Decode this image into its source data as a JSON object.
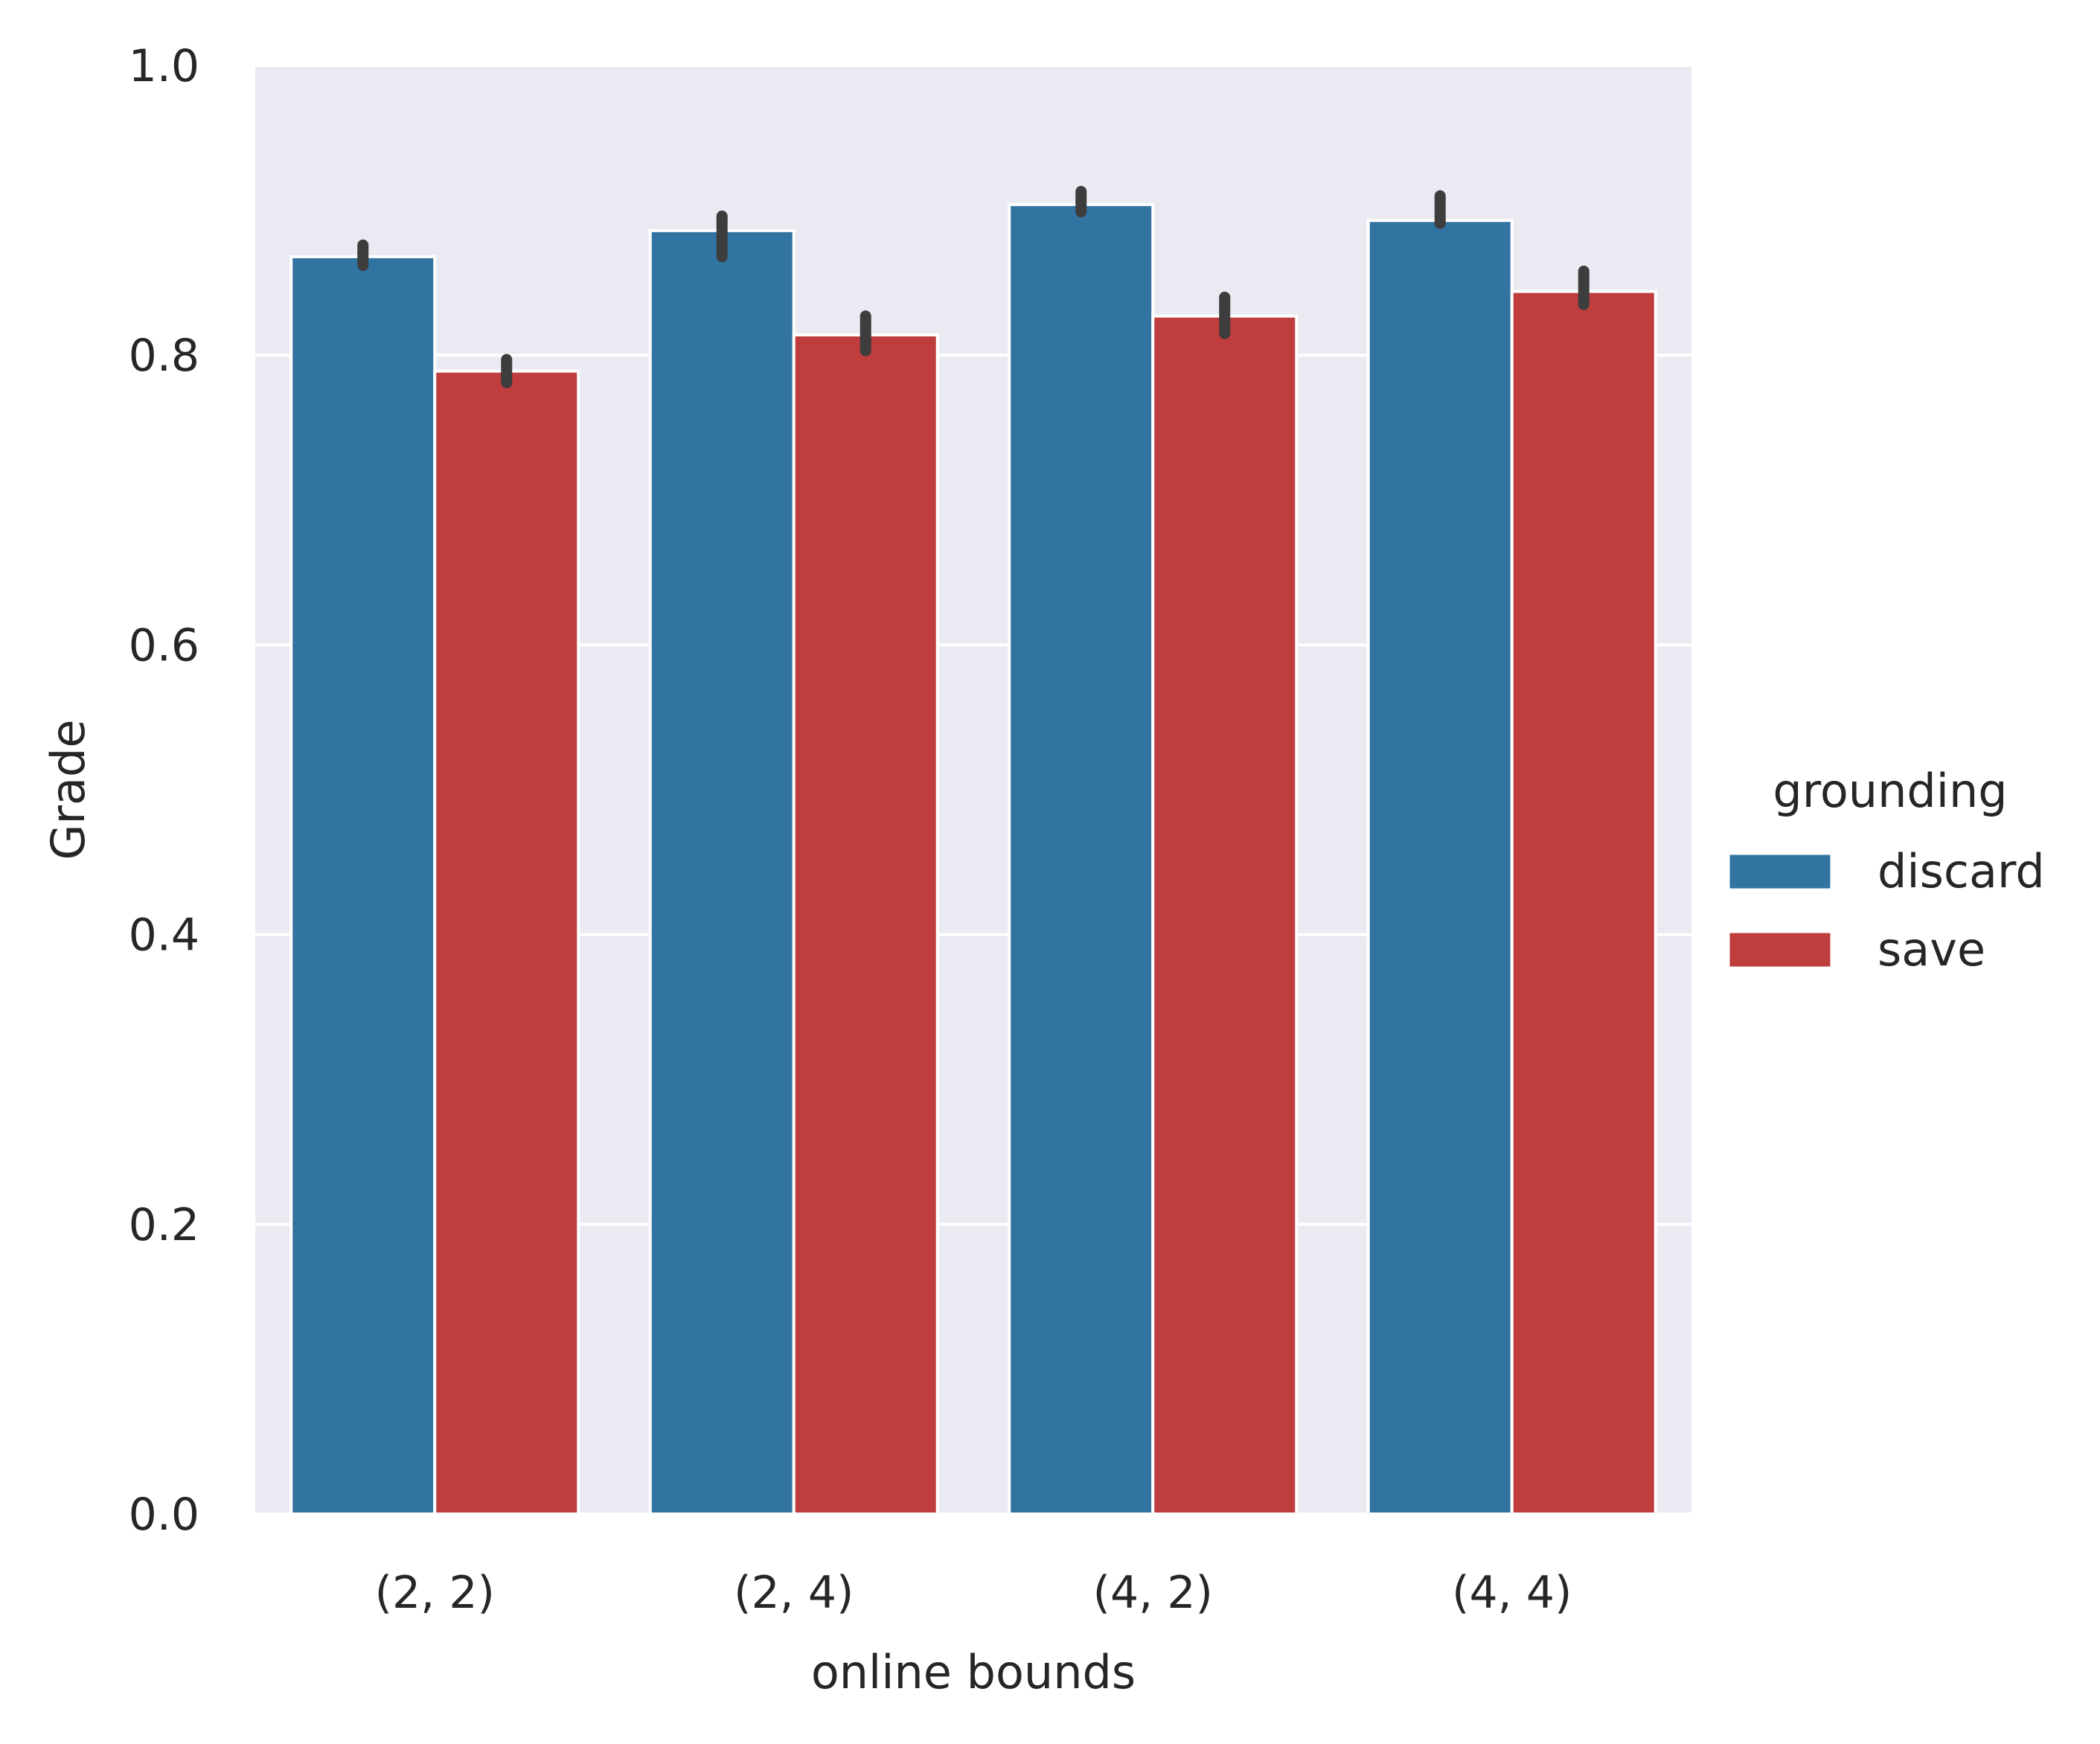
{
  "chart_data": {
    "type": "bar",
    "title": "",
    "xlabel": "online bounds",
    "ylabel": "Grade",
    "categories": [
      "(2, 2)",
      "(2, 4)",
      "(4, 2)",
      "(4, 4)"
    ],
    "ylim": [
      0,
      1.0
    ],
    "yticks": [
      0.0,
      0.2,
      0.4,
      0.6,
      0.8,
      1.0
    ],
    "ytick_labels": [
      "0.0",
      "0.2",
      "0.4",
      "0.6",
      "0.8",
      "1.0"
    ],
    "grid": true,
    "legend": {
      "title": "grounding",
      "placement": "right"
    },
    "series": [
      {
        "name": "discard",
        "color": "#3274a1",
        "values": [
          0.868,
          0.886,
          0.904,
          0.893
        ],
        "error_low": [
          0.862,
          0.868,
          0.899,
          0.891
        ],
        "error_high": [
          0.876,
          0.896,
          0.913,
          0.91
        ]
      },
      {
        "name": "save",
        "color": "#c03d3e",
        "values": [
          0.789,
          0.814,
          0.827,
          0.844
        ],
        "error_low": [
          0.781,
          0.803,
          0.815,
          0.835
        ],
        "error_high": [
          0.797,
          0.827,
          0.84,
          0.858
        ]
      }
    ],
    "colors": {
      "plot_background": "#eaeaf2",
      "grid": "#ffffff",
      "error_bar": "#3d3d3d",
      "text": "#262626"
    }
  }
}
